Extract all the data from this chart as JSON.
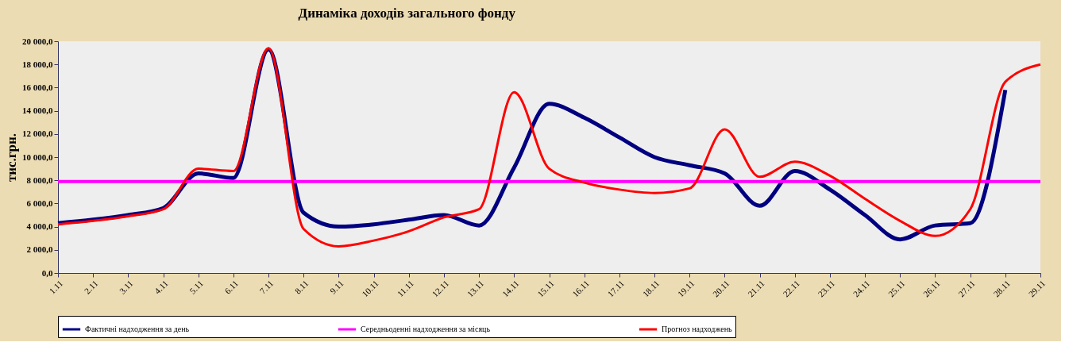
{
  "chart_data": {
    "type": "line",
    "title": "Динаміка доходів загального фонду",
    "ylabel": "тис.грн.",
    "categories": [
      "1.11",
      "2.11",
      "3.11",
      "4.11",
      "5.11",
      "6.11",
      "7.11",
      "8.11",
      "9.11",
      "10.11",
      "11.11",
      "12.11",
      "13.11",
      "14.11",
      "15.11",
      "16.11",
      "17.11",
      "18.11",
      "19.11",
      "20.11",
      "21.11",
      "22.11",
      "23.11",
      "24.11",
      "25.11",
      "26.11",
      "27.11",
      "28.11",
      "29.11"
    ],
    "series": [
      {
        "name": "Фактичні надходження за день",
        "color": "#000080",
        "values": [
          4300,
          4600,
          5000,
          5600,
          8600,
          8200,
          19300,
          5200,
          4000,
          4200,
          4600,
          5000,
          4100,
          9100,
          14600,
          13400,
          11700,
          10000,
          9300,
          8600,
          5800,
          8800,
          7200,
          5000,
          2900,
          4100,
          4300,
          15800,
          null
        ]
      },
      {
        "name": "Середньоденні надходження за місяць",
        "color": "#ff00ff",
        "values": [
          7900,
          7900,
          7900,
          7900,
          7900,
          7900,
          7900,
          7900,
          7900,
          7900,
          7900,
          7900,
          7900,
          7900,
          7900,
          7900,
          7900,
          7900,
          7900,
          7900,
          7900,
          7900,
          7900,
          7900,
          7900,
          7900,
          7900,
          7900,
          7900
        ]
      },
      {
        "name": "Прогноз надходжень",
        "color": "#ff0000",
        "values": [
          4200,
          4500,
          4900,
          5500,
          9000,
          8800,
          19400,
          3800,
          2300,
          2800,
          3600,
          4800,
          5500,
          15600,
          9000,
          7800,
          7200,
          6900,
          7300,
          12400,
          8300,
          9600,
          8400,
          6400,
          4500,
          3200,
          5500,
          16500,
          18000
        ]
      }
    ],
    "ylim": [
      0,
      20000
    ],
    "yticks": [
      {
        "value": 0,
        "label": "0,0"
      },
      {
        "value": 2000,
        "label": "2 000,0"
      },
      {
        "value": 4000,
        "label": "4 000,0"
      },
      {
        "value": 6000,
        "label": "6 000,0"
      },
      {
        "value": 8000,
        "label": "8 000,0"
      },
      {
        "value": 10000,
        "label": "10 000,0"
      },
      {
        "value": 12000,
        "label": "12 000,0"
      },
      {
        "value": 14000,
        "label": "14 000,0"
      },
      {
        "value": 16000,
        "label": "16 000,0"
      },
      {
        "value": 18000,
        "label": "18 000,0"
      },
      {
        "value": 20000,
        "label": "20 000,0"
      }
    ],
    "grid": false,
    "legend": "bottom",
    "marker": "none",
    "line_style": "solid"
  }
}
